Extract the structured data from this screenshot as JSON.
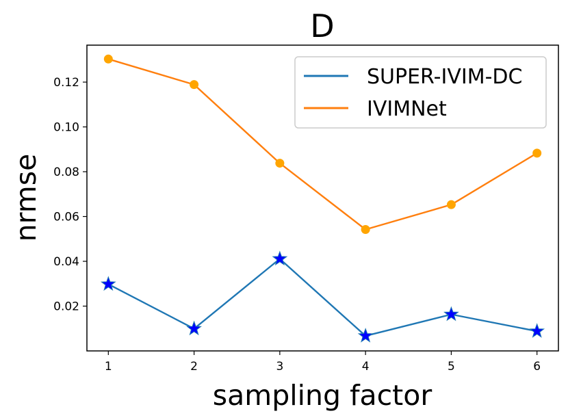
{
  "chart_data": {
    "type": "line",
    "title": "D",
    "xlabel": "sampling factor",
    "ylabel": "nrmse",
    "x": [
      1,
      2,
      3,
      4,
      5,
      6
    ],
    "xlim": [
      0.75,
      6.25
    ],
    "ylim": [
      0.0,
      0.1365
    ],
    "xticks": [
      1,
      2,
      3,
      4,
      5,
      6
    ],
    "xtick_labels": [
      "1",
      "2",
      "3",
      "4",
      "5",
      "6"
    ],
    "yticks": [
      0.02,
      0.04,
      0.06,
      0.08,
      0.1,
      0.12
    ],
    "ytick_labels": [
      "0.02",
      "0.04",
      "0.06",
      "0.08",
      "0.10",
      "0.12"
    ],
    "grid": false,
    "legend_position": "top-right",
    "series": [
      {
        "name": "SUPER-IVIM-DC",
        "line_color": "#1f77b4",
        "marker": "star",
        "marker_color": "#0000ff",
        "values": [
          0.0298,
          0.0099,
          0.0411,
          0.0067,
          0.0163,
          0.0088
        ]
      },
      {
        "name": "IVIMNet",
        "line_color": "#ff7f0e",
        "marker": "circle",
        "marker_color": "#ffa500",
        "values": [
          0.1303,
          0.1189,
          0.0838,
          0.0542,
          0.0653,
          0.0883
        ]
      }
    ]
  }
}
